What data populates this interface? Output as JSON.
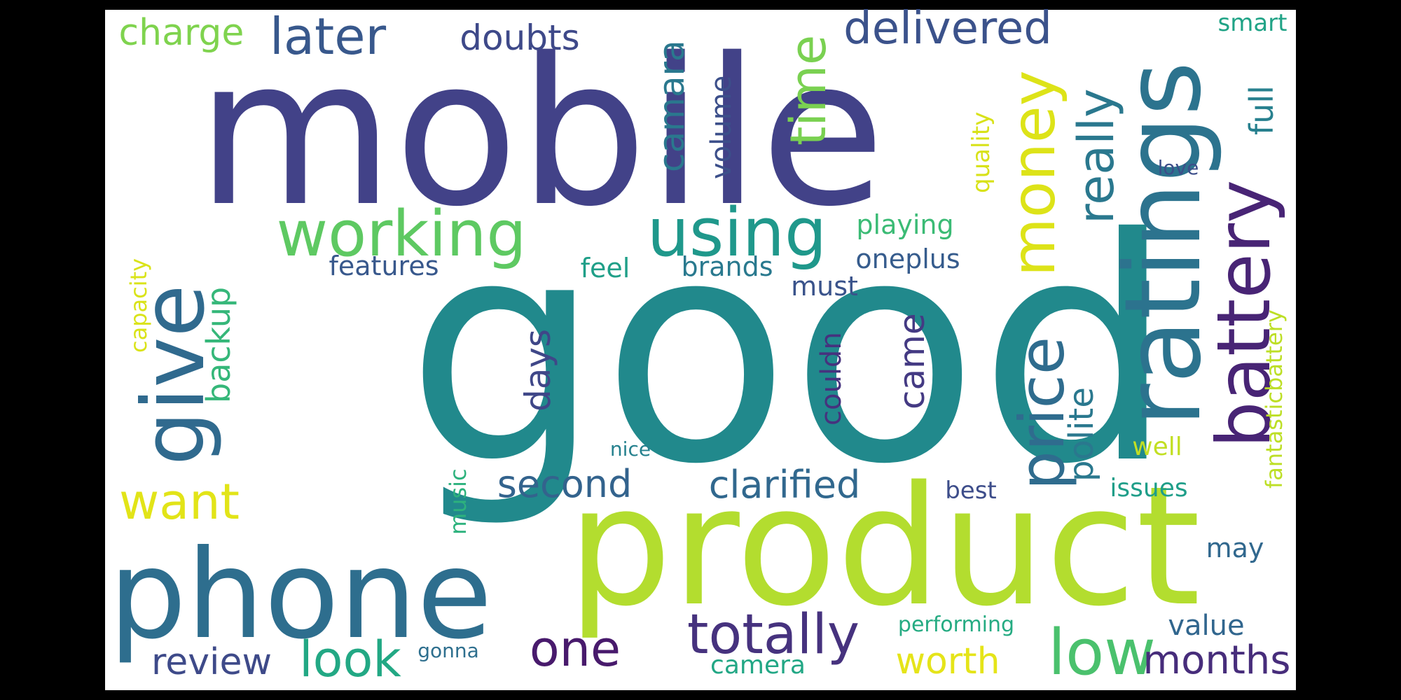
{
  "background_color": "#000000",
  "canvas_color": "#ffffff",
  "words": [
    {
      "text": "good",
      "color": "#21898c",
      "vertical": false
    },
    {
      "text": "mobile",
      "color": "#424288",
      "vertical": false
    },
    {
      "text": "product",
      "color": "#b3dd2f",
      "vertical": false
    },
    {
      "text": "phone",
      "color": "#2e6e8e",
      "vertical": false
    },
    {
      "text": "ratings",
      "color": "#2c738e",
      "vertical": true
    },
    {
      "text": "give",
      "color": "#306a8e",
      "vertical": true
    },
    {
      "text": "battery",
      "color": "#482475",
      "vertical": true
    },
    {
      "text": "using",
      "color": "#1f988b",
      "vertical": false
    },
    {
      "text": "working",
      "color": "#5ec962",
      "vertical": false
    },
    {
      "text": "money",
      "color": "#dde318",
      "vertical": true
    },
    {
      "text": "price",
      "color": "#2f6c8e",
      "vertical": true
    },
    {
      "text": "low",
      "color": "#4ac16d",
      "vertical": false
    },
    {
      "text": "later",
      "color": "#38588c",
      "vertical": false
    },
    {
      "text": "delivered",
      "color": "#3b528b",
      "vertical": false
    },
    {
      "text": "really",
      "color": "#2a788e",
      "vertical": true
    },
    {
      "text": "totally",
      "color": "#46327e",
      "vertical": false
    },
    {
      "text": "look",
      "color": "#22a884",
      "vertical": false
    },
    {
      "text": "one",
      "color": "#481a6c",
      "vertical": false
    },
    {
      "text": "want",
      "color": "#e2e418",
      "vertical": false
    },
    {
      "text": "time",
      "color": "#7ad151",
      "vertical": true
    },
    {
      "text": "months",
      "color": "#472d7b",
      "vertical": false
    },
    {
      "text": "clarified",
      "color": "#31688e",
      "vertical": false
    },
    {
      "text": "second",
      "color": "#33638d",
      "vertical": false
    },
    {
      "text": "doubts",
      "color": "#3e4989",
      "vertical": false
    },
    {
      "text": "charge",
      "color": "#7fd34e",
      "vertical": false
    },
    {
      "text": "review",
      "color": "#3e4a89",
      "vertical": false
    },
    {
      "text": "worth",
      "color": "#e5e419",
      "vertical": false
    },
    {
      "text": "camara",
      "color": "#2a788e",
      "vertical": true
    },
    {
      "text": "came",
      "color": "#443a83",
      "vertical": true
    },
    {
      "text": "days",
      "color": "#3f4788",
      "vertical": true
    },
    {
      "text": "polite",
      "color": "#2a788e",
      "vertical": true
    },
    {
      "text": "backup",
      "color": "#35b779",
      "vertical": true
    },
    {
      "text": "full",
      "color": "#27808e",
      "vertical": true
    },
    {
      "text": "volume",
      "color": "#3c4f8a",
      "vertical": true
    },
    {
      "text": "value",
      "color": "#31668e",
      "vertical": false
    },
    {
      "text": "may",
      "color": "#31688e",
      "vertical": false
    },
    {
      "text": "playing",
      "color": "#3bbb75",
      "vertical": false
    },
    {
      "text": "oneplus",
      "color": "#365c8d",
      "vertical": false
    },
    {
      "text": "feel",
      "color": "#1f9f88",
      "vertical": false
    },
    {
      "text": "brands",
      "color": "#29798e",
      "vertical": false
    },
    {
      "text": "features",
      "color": "#38588c",
      "vertical": false
    },
    {
      "text": "must",
      "color": "#3a538b",
      "vertical": false
    },
    {
      "text": "couldn",
      "color": "#46327e",
      "vertical": true
    },
    {
      "text": "camera",
      "color": "#22a785",
      "vertical": false
    },
    {
      "text": "issues",
      "color": "#1f9e89",
      "vertical": false
    },
    {
      "text": "best",
      "color": "#3d4d8a",
      "vertical": false
    },
    {
      "text": "well",
      "color": "#c2df23",
      "vertical": false
    },
    {
      "text": "smart",
      "color": "#20a386",
      "vertical": false
    },
    {
      "text": "quality",
      "color": "#d8e219",
      "vertical": true
    },
    {
      "text": "capacity",
      "color": "#dae319",
      "vertical": true
    },
    {
      "text": "fantasticbattery",
      "color": "#bddf26",
      "vertical": true
    },
    {
      "text": "music",
      "color": "#2db27d",
      "vertical": true
    },
    {
      "text": "performing",
      "color": "#25ab82",
      "vertical": false
    },
    {
      "text": "gonna",
      "color": "#2e6f8e",
      "vertical": false
    },
    {
      "text": "nice",
      "color": "#26818e",
      "vertical": false
    },
    {
      "text": "love",
      "color": "#3d4e8a",
      "vertical": false
    }
  ]
}
